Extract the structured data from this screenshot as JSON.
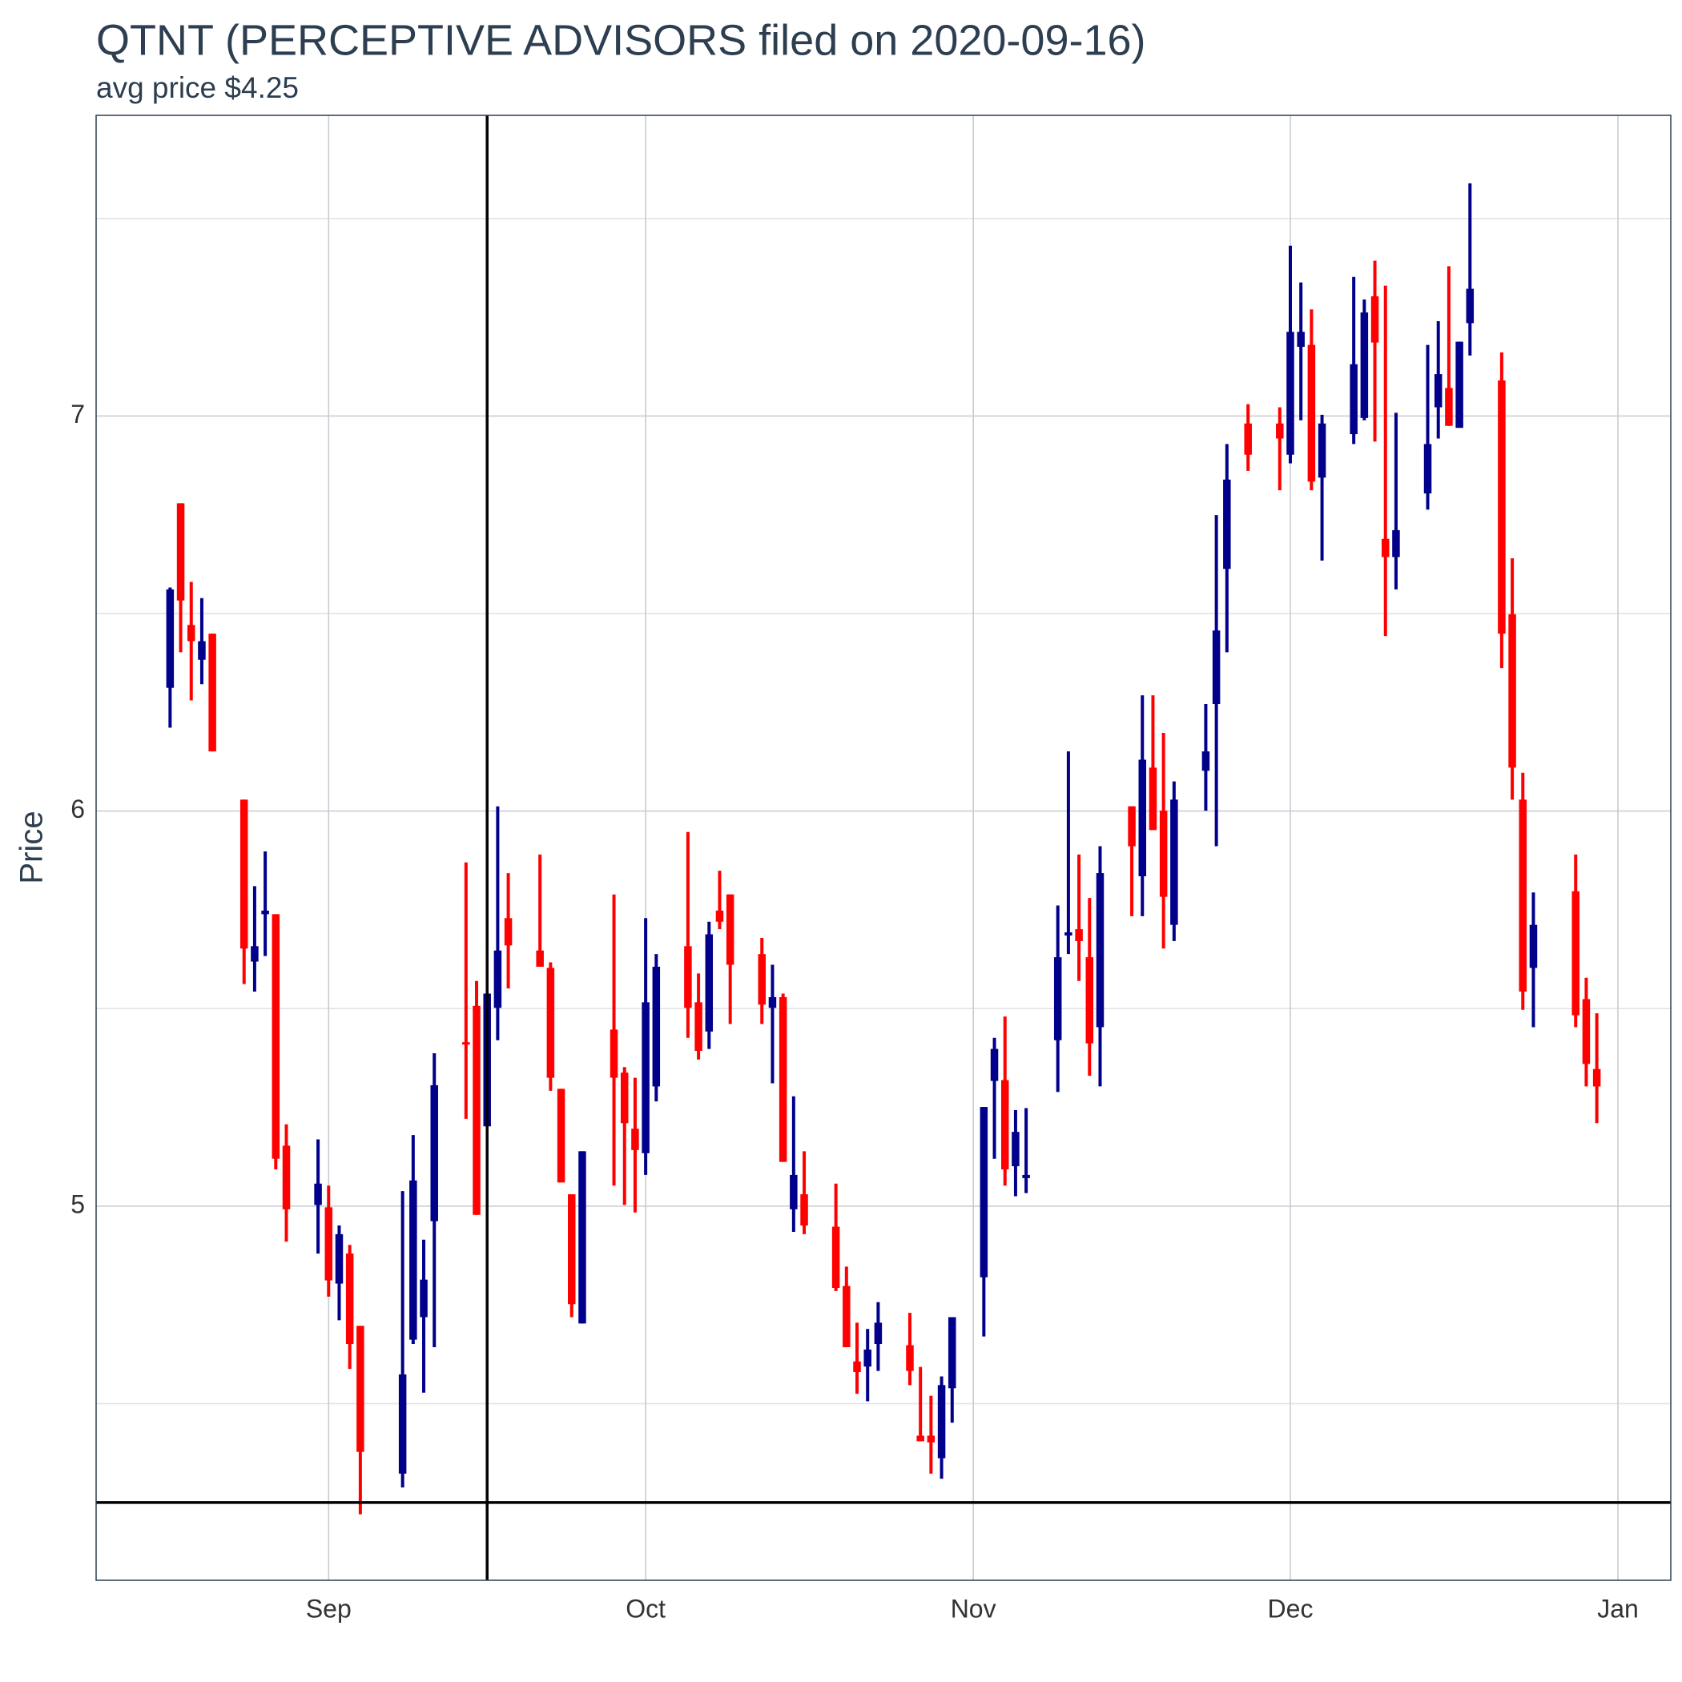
{
  "chart_data": {
    "type": "candlestick",
    "title": "QTNT (PERCEPTIVE ADVISORS filed on 2020-09-16)",
    "subtitle": "avg price $4.25",
    "y_label": "Price",
    "up_color": "#00008b",
    "down_color": "#ff0000",
    "grid": true,
    "hline": 4.25,
    "vline": "2020-09-16",
    "xlim": [
      "2020-08-10",
      "2021-01-06"
    ],
    "xticks": [
      {
        "value": "2020-09-01",
        "label": "Sep"
      },
      {
        "value": "2020-10-01",
        "label": "Oct"
      },
      {
        "value": "2020-11-01",
        "label": "Nov"
      },
      {
        "value": "2020-12-01",
        "label": "Dec"
      },
      {
        "value": "2021-01-01",
        "label": "Jan"
      }
    ],
    "ylim": [
      4.053,
      7.761
    ],
    "yticks": [
      5,
      6,
      7
    ],
    "yminor": [
      4.5,
      5.5,
      6.5,
      7.5
    ],
    "x": [
      "2020-08-17",
      "2020-08-18",
      "2020-08-19",
      "2020-08-20",
      "2020-08-21",
      "2020-08-24",
      "2020-08-25",
      "2020-08-26",
      "2020-08-27",
      "2020-08-28",
      "2020-08-31",
      "2020-09-01",
      "2020-09-02",
      "2020-09-03",
      "2020-09-04",
      "2020-09-08",
      "2020-09-09",
      "2020-09-10",
      "2020-09-11",
      "2020-09-14",
      "2020-09-15",
      "2020-09-16",
      "2020-09-17",
      "2020-09-18",
      "2020-09-21",
      "2020-09-22",
      "2020-09-23",
      "2020-09-24",
      "2020-09-25",
      "2020-09-28",
      "2020-09-29",
      "2020-09-30",
      "2020-10-01",
      "2020-10-02",
      "2020-10-05",
      "2020-10-06",
      "2020-10-07",
      "2020-10-08",
      "2020-10-09",
      "2020-10-12",
      "2020-10-13",
      "2020-10-14",
      "2020-10-15",
      "2020-10-16",
      "2020-10-19",
      "2020-10-20",
      "2020-10-21",
      "2020-10-22",
      "2020-10-23",
      "2020-10-26",
      "2020-10-27",
      "2020-10-28",
      "2020-10-29",
      "2020-10-30",
      "2020-11-02",
      "2020-11-03",
      "2020-11-04",
      "2020-11-05",
      "2020-11-06",
      "2020-11-09",
      "2020-11-10",
      "2020-11-11",
      "2020-11-12",
      "2020-11-13",
      "2020-11-16",
      "2020-11-17",
      "2020-11-18",
      "2020-11-19",
      "2020-11-20",
      "2020-11-23",
      "2020-11-24",
      "2020-11-25",
      "2020-11-27",
      "2020-11-30",
      "2020-12-01",
      "2020-12-02",
      "2020-12-03",
      "2020-12-04",
      "2020-12-07",
      "2020-12-08",
      "2020-12-09",
      "2020-12-10",
      "2020-12-11",
      "2020-12-14",
      "2020-12-15",
      "2020-12-16",
      "2020-12-17",
      "2020-12-18",
      "2020-12-21",
      "2020-12-22",
      "2020-12-23",
      "2020-12-24",
      "2020-12-28",
      "2020-12-29",
      "2020-12-30"
    ],
    "open": [
      6.312,
      6.779,
      6.471,
      6.383,
      6.449,
      6.029,
      5.619,
      5.739,
      5.739,
      5.153,
      5.003,
      4.997,
      4.804,
      4.88,
      4.697,
      4.323,
      4.662,
      4.719,
      4.962,
      5.415,
      5.507,
      5.202,
      5.502,
      5.729,
      5.647,
      5.603,
      5.297,
      5.03,
      4.703,
      5.447,
      5.338,
      5.196,
      5.134,
      5.303,
      5.658,
      5.516,
      5.442,
      5.748,
      5.789,
      5.638,
      5.502,
      5.529,
      4.992,
      5.03,
      4.948,
      4.798,
      4.607,
      4.594,
      4.651,
      4.648,
      4.419,
      4.419,
      4.362,
      4.539,
      4.82,
      5.317,
      5.319,
      5.101,
      5.071,
      5.42,
      5.685,
      5.701,
      5.63,
      5.453,
      6.012,
      5.835,
      6.11,
      6.001,
      5.712,
      6.102,
      6.271,
      6.613,
      6.981,
      6.981,
      6.902,
      7.175,
      7.18,
      6.844,
      6.954,
      6.995,
      7.303,
      6.689,
      6.643,
      6.804,
      7.022,
      7.071,
      6.97,
      7.235,
      7.09,
      6.498,
      6.029,
      5.603,
      5.797,
      5.524,
      5.347
    ],
    "high": [
      6.566,
      6.779,
      6.58,
      6.539,
      6.449,
      6.029,
      5.81,
      5.898,
      5.739,
      5.207,
      5.169,
      5.052,
      4.951,
      4.902,
      4.697,
      5.038,
      5.18,
      4.915,
      5.387,
      5.87,
      5.57,
      5.538,
      6.012,
      5.843,
      5.89,
      5.617,
      5.297,
      5.03,
      5.139,
      5.789,
      5.352,
      5.325,
      5.729,
      5.638,
      5.947,
      5.589,
      5.72,
      5.849,
      5.789,
      5.679,
      5.611,
      5.538,
      5.278,
      5.139,
      5.057,
      4.847,
      4.705,
      4.689,
      4.757,
      4.73,
      4.593,
      4.52,
      4.569,
      4.719,
      5.251,
      5.426,
      5.48,
      5.243,
      5.248,
      5.761,
      6.151,
      5.89,
      5.78,
      5.911,
      6.012,
      6.293,
      6.293,
      6.198,
      6.075,
      6.271,
      6.749,
      6.929,
      7.03,
      7.022,
      7.431,
      7.338,
      7.27,
      7.003,
      7.352,
      7.295,
      7.393,
      7.33,
      7.008,
      7.18,
      7.24,
      7.379,
      7.188,
      7.589,
      7.161,
      6.64,
      6.097,
      5.794,
      5.89,
      5.578,
      5.488
    ],
    "low": [
      6.211,
      6.402,
      6.28,
      6.321,
      6.151,
      5.562,
      5.543,
      5.633,
      5.093,
      4.91,
      4.88,
      4.771,
      4.711,
      4.588,
      4.22,
      4.288,
      4.651,
      4.528,
      4.643,
      5.221,
      4.978,
      5.202,
      5.42,
      5.551,
      5.606,
      5.292,
      5.06,
      4.719,
      4.703,
      5.052,
      5.003,
      4.984,
      5.079,
      5.265,
      5.426,
      5.371,
      5.398,
      5.701,
      5.461,
      5.461,
      5.311,
      5.112,
      4.935,
      4.929,
      4.785,
      4.643,
      4.525,
      4.506,
      4.583,
      4.547,
      4.405,
      4.323,
      4.31,
      4.452,
      4.67,
      5.12,
      5.052,
      5.025,
      5.033,
      5.289,
      5.638,
      5.57,
      5.33,
      5.303,
      5.734,
      5.734,
      5.952,
      5.652,
      5.671,
      6.001,
      5.911,
      6.402,
      6.861,
      6.812,
      6.88,
      6.989,
      6.812,
      6.634,
      6.929,
      6.989,
      6.935,
      6.443,
      6.561,
      6.763,
      6.943,
      6.975,
      6.97,
      7.153,
      6.362,
      6.029,
      5.497,
      5.453,
      5.453,
      5.303,
      5.21
    ],
    "close": [
      6.561,
      6.533,
      6.43,
      6.43,
      6.151,
      5.652,
      5.658,
      5.748,
      5.12,
      4.992,
      5.057,
      4.812,
      4.929,
      4.651,
      4.378,
      4.574,
      5.065,
      4.814,
      5.306,
      5.409,
      4.978,
      5.538,
      5.647,
      5.66,
      5.606,
      5.325,
      5.06,
      4.752,
      5.139,
      5.325,
      5.21,
      5.142,
      5.516,
      5.606,
      5.502,
      5.393,
      5.688,
      5.72,
      5.611,
      5.51,
      5.529,
      5.112,
      5.079,
      4.951,
      4.793,
      4.643,
      4.58,
      4.637,
      4.705,
      4.583,
      4.405,
      4.402,
      4.547,
      4.719,
      5.251,
      5.398,
      5.093,
      5.188,
      5.079,
      5.63,
      5.693,
      5.671,
      5.412,
      5.843,
      5.911,
      6.13,
      5.952,
      5.783,
      6.029,
      6.151,
      6.457,
      6.839,
      6.902,
      6.943,
      7.213,
      7.213,
      6.834,
      6.981,
      7.131,
      7.262,
      7.186,
      6.643,
      6.711,
      6.929,
      7.106,
      6.975,
      7.188,
      7.322,
      6.449,
      6.11,
      5.543,
      5.712,
      5.483,
      5.36,
      5.303
    ]
  }
}
